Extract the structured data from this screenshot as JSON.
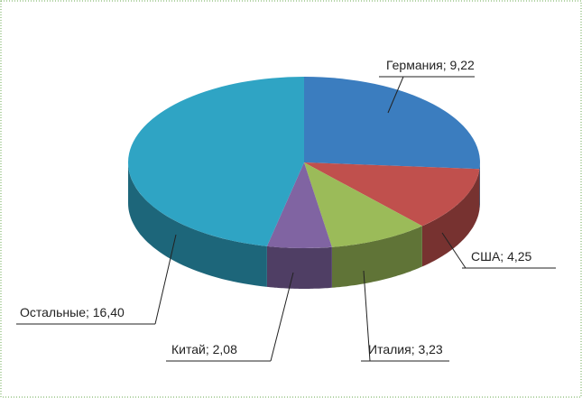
{
  "chart_data": {
    "type": "pie",
    "three_d": true,
    "categories": [
      "Германия",
      "США",
      "Италия",
      "Китай",
      "Остальные"
    ],
    "values": [
      9.22,
      4.25,
      3.23,
      2.08,
      16.4
    ],
    "value_labels": [
      "9,22",
      "4,25",
      "3,23",
      "2,08",
      "16,40"
    ],
    "separator": "; ",
    "colors": [
      "#3b7dbf",
      "#c0504d",
      "#9bbb59",
      "#8064a2",
      "#2fa4c4"
    ]
  }
}
